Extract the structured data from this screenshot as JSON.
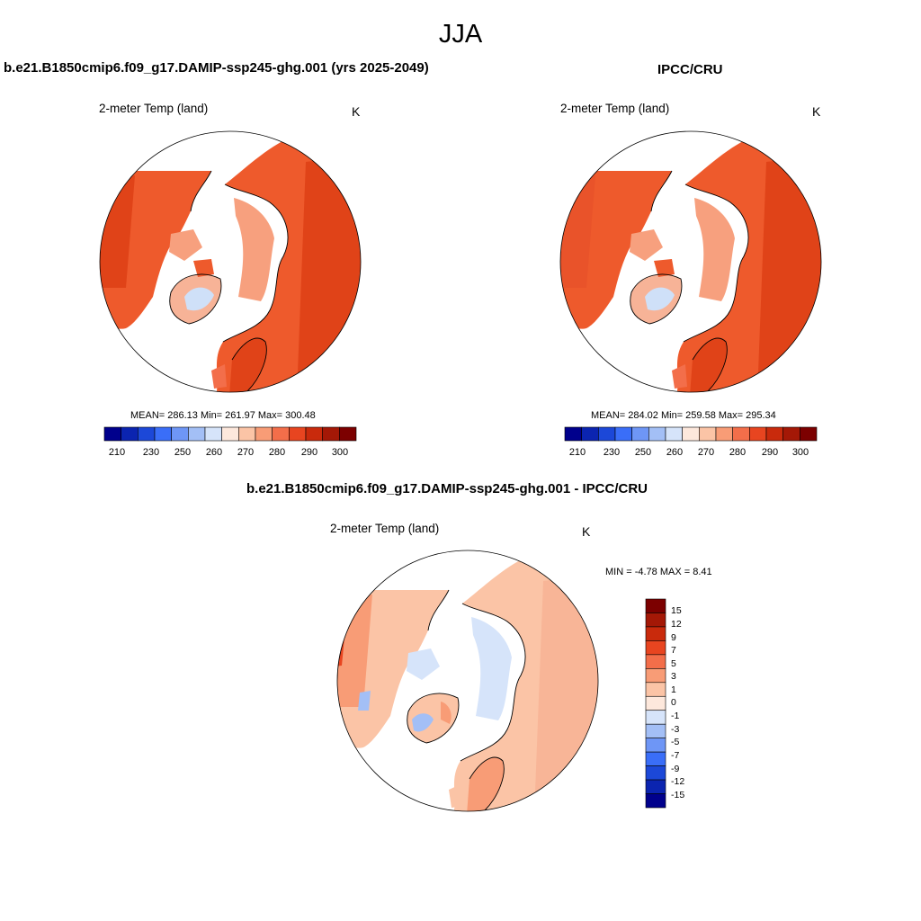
{
  "figure": {
    "title": "JJA",
    "colors": {
      "absolute_scale": [
        "#00008c",
        "#0b24b0",
        "#1c48d8",
        "#3a6ef8",
        "#6e96f6",
        "#a3bff6",
        "#d6e4fa",
        "#fde8dc",
        "#fbc4a6",
        "#f89c76",
        "#f36e4a",
        "#e84520",
        "#c92a0c",
        "#a41806",
        "#7c0000"
      ],
      "difference_scale": [
        "#00008c",
        "#0b24b0",
        "#1c48d8",
        "#3a6ef8",
        "#6e96f6",
        "#a3bff6",
        "#d6e4fa",
        "#fde8dc",
        "#fbc4a6",
        "#f89c76",
        "#f36e4a",
        "#e84520",
        "#c92a0c",
        "#a41806",
        "#7c0000"
      ],
      "land_warm": "#ee5a2c",
      "land_cool": "#f7b397",
      "ice": "#cfe0f8"
    }
  },
  "panels": {
    "left": {
      "title": "b.e21.B1850cmip6.f09_g17.DAMIP-ssp245-ghg.001 (yrs 2025-2049)",
      "variable": "2-meter Temp (land)",
      "unit": "K",
      "stats": "MEAN= 286.13  Min= 261.97  Max= 300.48",
      "colorbar_labels": [
        "210",
        "230",
        "250",
        "260",
        "270",
        "280",
        "290",
        "300"
      ]
    },
    "right": {
      "title": "IPCC/CRU",
      "variable": "2-meter Temp (land)",
      "unit": "K",
      "stats": "MEAN= 284.02  Min= 259.58  Max= 295.34",
      "colorbar_labels": [
        "210",
        "230",
        "250",
        "260",
        "270",
        "280",
        "290",
        "300"
      ]
    },
    "diff": {
      "title": "b.e21.B1850cmip6.f09_g17.DAMIP-ssp245-ghg.001 - IPCC/CRU",
      "variable": "2-meter Temp (land)",
      "unit": "K",
      "stats": "MIN =  -4.78 MAX =   8.41",
      "colorbar_labels": [
        "15",
        "12",
        "9",
        "7",
        "5",
        "3",
        "1",
        "0",
        "-1",
        "-3",
        "-5",
        "-7",
        "-9",
        "-12",
        "-15"
      ]
    }
  }
}
